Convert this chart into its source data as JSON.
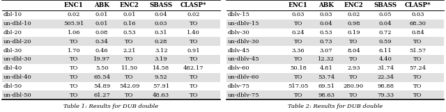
{
  "table1": {
    "caption": "Table 1: Results for DUB double",
    "headers": [
      "",
      "ENC1",
      "ABK",
      "ENC2",
      "SBASS",
      "CLASP*"
    ],
    "rows": [
      [
        "dbl-10",
        "0.02",
        "0.01",
        "0.01",
        "0.04",
        "0.02"
      ],
      [
        "un-dbl-10",
        "505.91",
        "0.01",
        "0.16",
        "0.03",
        "TO"
      ],
      [
        "dbl-20",
        "1.06",
        "0.08",
        "0.53",
        "0.31",
        "1.40"
      ],
      [
        "un-dbl-20",
        "TO",
        "0.34",
        "TO",
        "0.28",
        "TO"
      ],
      [
        "dbl-30",
        "1.70",
        "0.46",
        "2.21",
        "3.12",
        "0.91"
      ],
      [
        "un-dbl-30",
        "TO",
        "19.97",
        "TO",
        "3.19",
        "TO"
      ],
      [
        "dbl-40",
        "TO",
        "5.50",
        "11.50",
        "14.58",
        "482.17"
      ],
      [
        "un-dbl-40",
        "TO",
        "65.54",
        "TO",
        "9.52",
        "TO"
      ],
      [
        "dbl-50",
        "TO",
        "54.89",
        "542.09",
        "57.91",
        "TO"
      ],
      [
        "un-dbl-50",
        "TO",
        "61.27",
        "TO",
        "48.63",
        "TO"
      ]
    ]
  },
  "table2": {
    "caption": "Table 2: Results for DUB double",
    "headers": [
      "",
      "ENC1",
      "ABK",
      "ENC2",
      "SBASS",
      "CLASP*"
    ],
    "rows": [
      [
        "dblv-15",
        "0.03",
        "0.03",
        "0.02",
        "0.05",
        "0.03"
      ],
      [
        "un-dblv-15",
        "TO",
        "0.04",
        "0.98",
        "0.04",
        "68.30"
      ],
      [
        "dblv-30",
        "0.24",
        "0.53",
        "0.19",
        "0.72",
        "0.84"
      ],
      [
        "un-dblv-30",
        "TO",
        "0.73",
        "TO",
        "0.59",
        "TO"
      ],
      [
        "dblv-45",
        "3.36",
        "3.07",
        "8.04",
        "6.11",
        "51.57"
      ],
      [
        "un-dblv-45",
        "TO",
        "12.32",
        "TO",
        "4.40",
        "TO"
      ],
      [
        "dblv-60",
        "50.18",
        "4.81",
        "2.93",
        "31.74",
        "57.24"
      ],
      [
        "un-dblv-60",
        "TO",
        "53.74",
        "TO",
        "22.34",
        "TO"
      ],
      [
        "dblv-75",
        "517.05",
        "69.51",
        "280.90",
        "98.88",
        "TO"
      ],
      [
        "un-dblv-75",
        "TO",
        "98.63",
        "TO",
        "79.33",
        "TO"
      ]
    ]
  },
  "bg_shaded": "#e0e0e0",
  "text_color": "#000000",
  "font_size": 6.0,
  "header_font_size": 6.3,
  "caption_font_size": 6.0,
  "figsize": [
    6.4,
    1.61
  ],
  "dpi": 100
}
